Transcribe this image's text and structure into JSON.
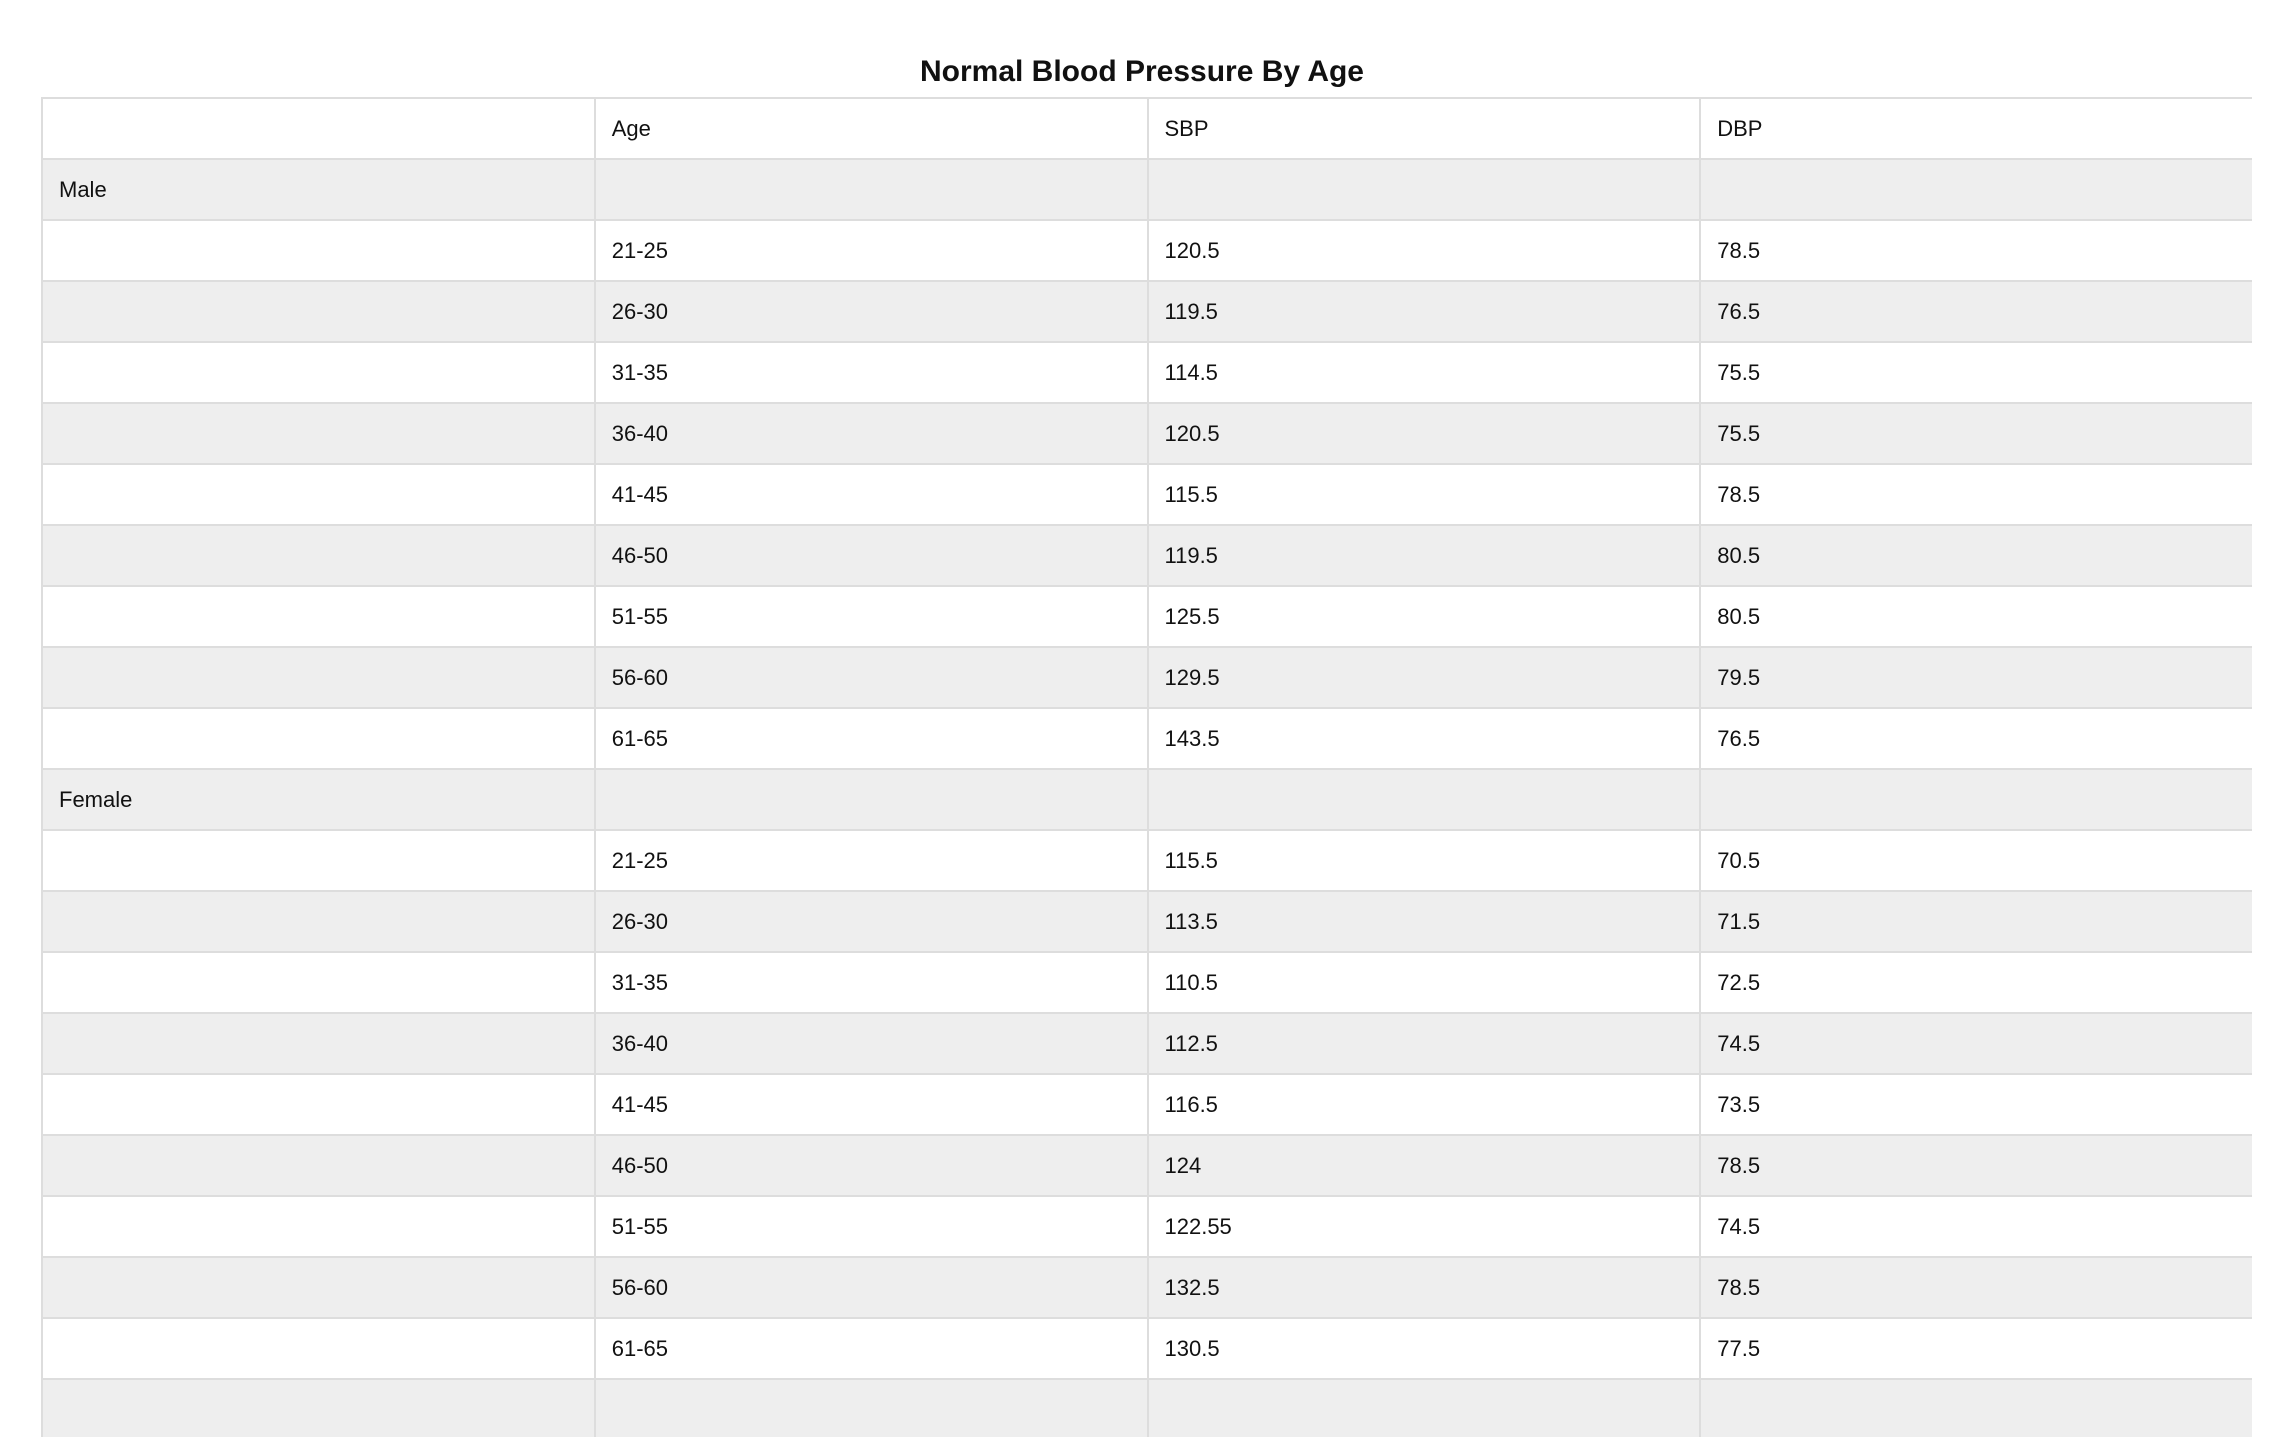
{
  "chart_data": {
    "type": "table",
    "title": "Normal Blood Pressure By Age",
    "columns": [
      "",
      "Age",
      "SBP",
      "DBP"
    ],
    "rows": [
      [
        "Male",
        "",
        "",
        ""
      ],
      [
        "",
        "21-25",
        "120.5",
        "78.5"
      ],
      [
        "",
        "26-30",
        "119.5",
        "76.5"
      ],
      [
        "",
        "31-35",
        "114.5",
        "75.5"
      ],
      [
        "",
        "36-40",
        "120.5",
        "75.5"
      ],
      [
        "",
        "41-45",
        "115.5",
        "78.5"
      ],
      [
        "",
        "46-50",
        "119.5",
        "80.5"
      ],
      [
        "",
        "51-55",
        "125.5",
        "80.5"
      ],
      [
        "",
        "56-60",
        "129.5",
        "79.5"
      ],
      [
        "",
        "61-65",
        "143.5",
        "76.5"
      ],
      [
        "Female",
        "",
        "",
        ""
      ],
      [
        "",
        "21-25",
        "115.5",
        "70.5"
      ],
      [
        "",
        "26-30",
        "113.5",
        "71.5"
      ],
      [
        "",
        "31-35",
        "110.5",
        "72.5"
      ],
      [
        "",
        "36-40",
        "112.5",
        "74.5"
      ],
      [
        "",
        "41-45",
        "116.5",
        "73.5"
      ],
      [
        "",
        "46-50",
        "124",
        "78.5"
      ],
      [
        "",
        "51-55",
        "122.55",
        "74.5"
      ],
      [
        "",
        "56-60",
        "132.5",
        "78.5"
      ],
      [
        "",
        "61-65",
        "130.5",
        "77.5"
      ],
      [
        "",
        "",
        "",
        ""
      ]
    ],
    "colors": {
      "header_row": "#ffffff",
      "striped_row": "#eeeeee",
      "plain_row": "#ffffff",
      "border": "#dddddd"
    }
  }
}
